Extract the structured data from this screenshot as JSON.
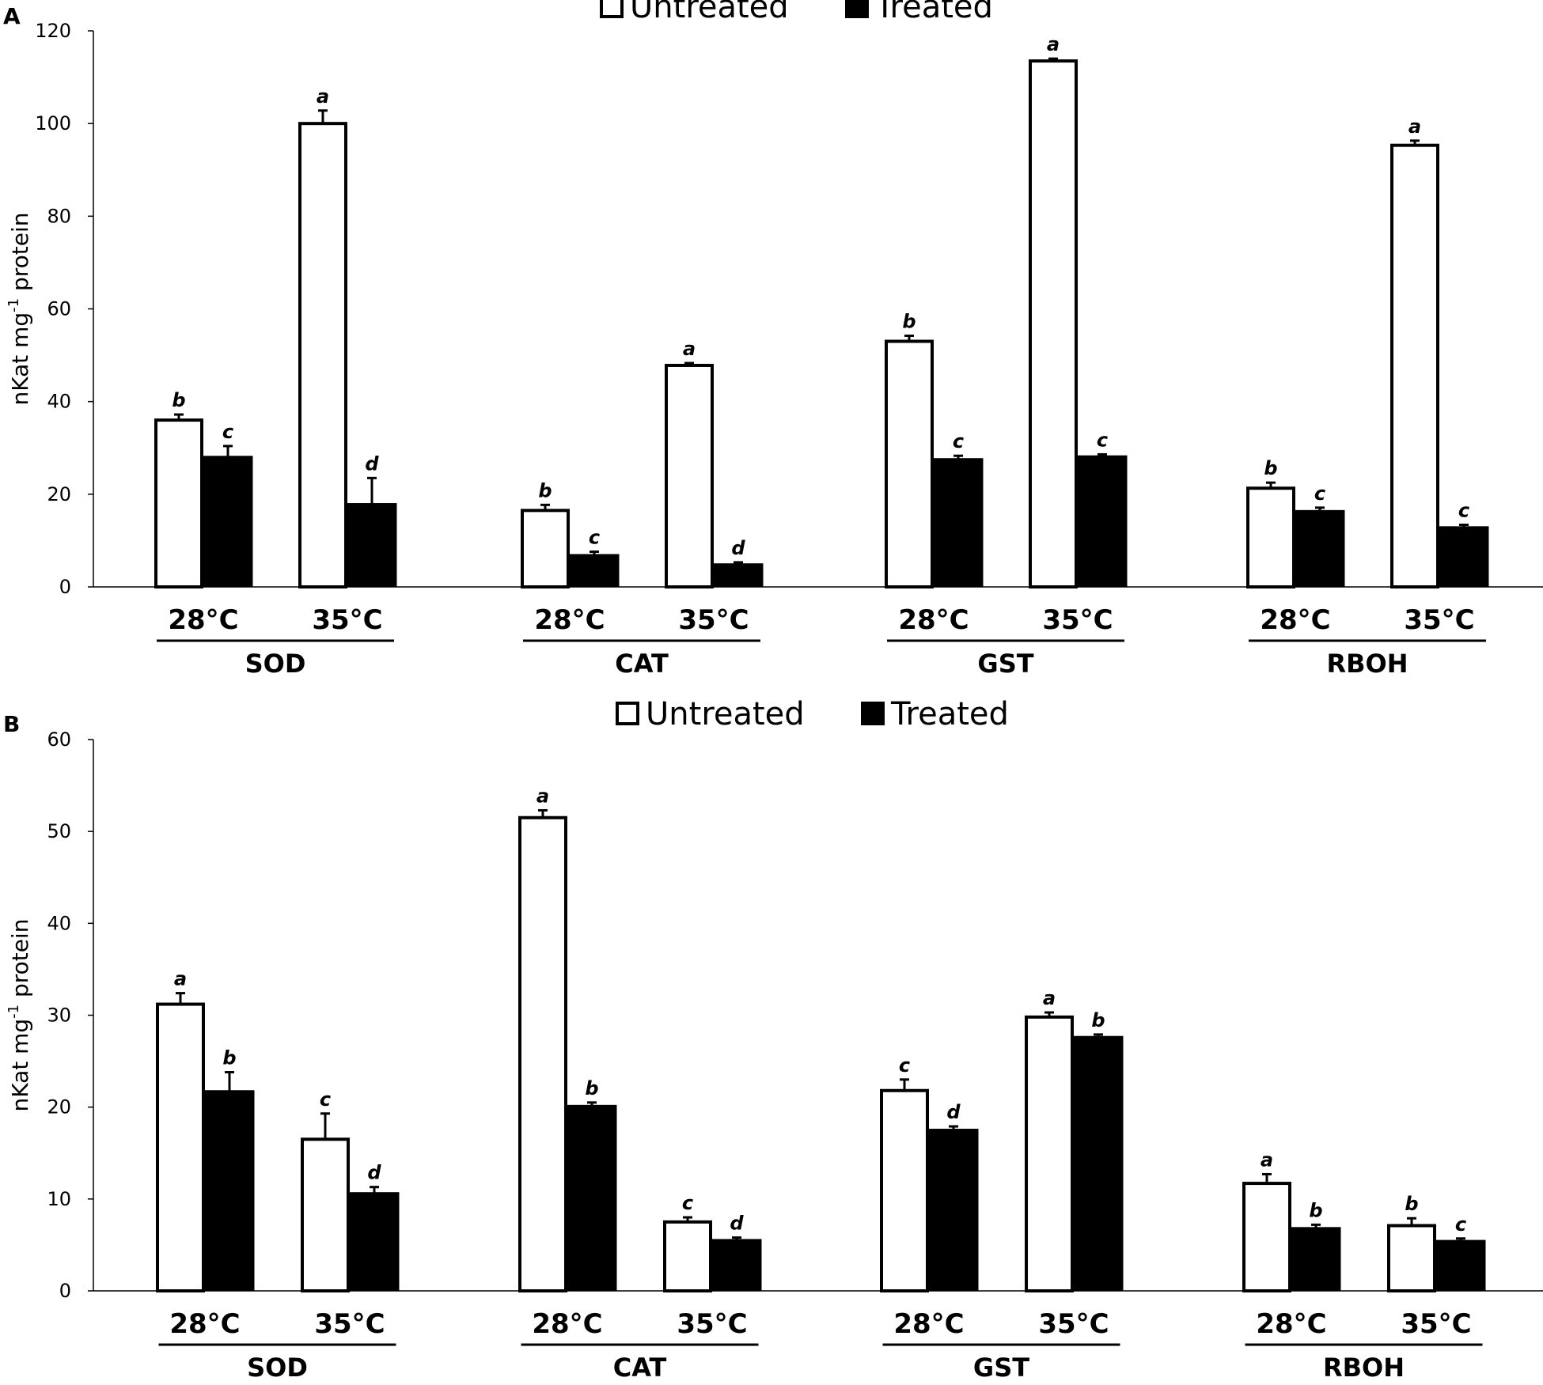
{
  "chart_data": [
    {
      "type": "bar",
      "panel": "A",
      "title": "",
      "xlabel": "",
      "ylabel": "nKat mg",
      "ylabel_superscript": "-1",
      "ylabel_suffix": " protein",
      "ylim": [
        0,
        120
      ],
      "yticks": [
        "0",
        "20",
        "40",
        "60",
        "80",
        "100",
        "120"
      ],
      "legend": [
        "Untreated",
        "Treated"
      ],
      "legend_position": "top-center",
      "groups": [
        "SOD",
        "CAT",
        "GST",
        "RBOH"
      ],
      "temperatures": [
        "28°C",
        "35°C"
      ],
      "series": [
        {
          "name": "Untreated",
          "color": "#ffffff",
          "values": [
            [
              36,
              100
            ],
            [
              16.5,
              47.8
            ],
            [
              53,
              113.5
            ],
            [
              21.3,
              95.3
            ]
          ],
          "errors": [
            [
              1.2,
              2.8
            ],
            [
              1.2,
              0.5
            ],
            [
              1.2,
              0.5
            ],
            [
              1.2,
              1.0
            ]
          ],
          "letters": [
            [
              "b",
              "a"
            ],
            [
              "b",
              "a"
            ],
            [
              "b",
              "a"
            ],
            [
              "b",
              "a"
            ]
          ]
        },
        {
          "name": "Treated",
          "color": "#000000",
          "values": [
            [
              28.2,
              18
            ],
            [
              7,
              5
            ],
            [
              27.7,
              28.3
            ],
            [
              16.5,
              13
            ]
          ],
          "errors": [
            [
              2.2,
              5.5
            ],
            [
              0.6,
              0.3
            ],
            [
              0.6,
              0.3
            ],
            [
              0.6,
              0.4
            ]
          ],
          "letters": [
            [
              "c",
              "d"
            ],
            [
              "c",
              "d"
            ],
            [
              "c",
              "c"
            ],
            [
              "c",
              "c"
            ]
          ]
        }
      ]
    },
    {
      "type": "bar",
      "panel": "B",
      "title": "",
      "xlabel": "",
      "ylabel": "nKat mg",
      "ylabel_superscript": "-1",
      "ylabel_suffix": " protein",
      "ylim": [
        0,
        60
      ],
      "yticks": [
        "0",
        "10",
        "20",
        "30",
        "40",
        "50",
        "60"
      ],
      "legend": [
        "Untreated",
        "Treated"
      ],
      "legend_position": "top-center",
      "groups": [
        "SOD",
        "CAT",
        "GST",
        "RBOH"
      ],
      "temperatures": [
        "28°C",
        "35°C"
      ],
      "series": [
        {
          "name": "Untreated",
          "color": "#ffffff",
          "values": [
            [
              31.2,
              16.5
            ],
            [
              51.5,
              7.5
            ],
            [
              21.8,
              29.8
            ],
            [
              11.7,
              7.1
            ]
          ],
          "errors": [
            [
              1.2,
              2.8
            ],
            [
              0.8,
              0.5
            ],
            [
              1.2,
              0.5
            ],
            [
              1.0,
              0.8
            ]
          ],
          "letters": [
            [
              "a",
              "c"
            ],
            [
              "a",
              "c"
            ],
            [
              "c",
              "a"
            ],
            [
              "a",
              "b"
            ]
          ]
        },
        {
          "name": "Treated",
          "color": "#000000",
          "values": [
            [
              21.8,
              10.7
            ],
            [
              20.2,
              5.6
            ],
            [
              17.6,
              27.7
            ],
            [
              6.9,
              5.5
            ]
          ],
          "errors": [
            [
              2.0,
              0.6
            ],
            [
              0.3,
              0.2
            ],
            [
              0.3,
              0.2
            ],
            [
              0.3,
              0.2
            ]
          ],
          "letters": [
            [
              "b",
              "d"
            ],
            [
              "b",
              "d"
            ],
            [
              "d",
              "b"
            ],
            [
              "b",
              "c"
            ]
          ]
        }
      ]
    }
  ]
}
